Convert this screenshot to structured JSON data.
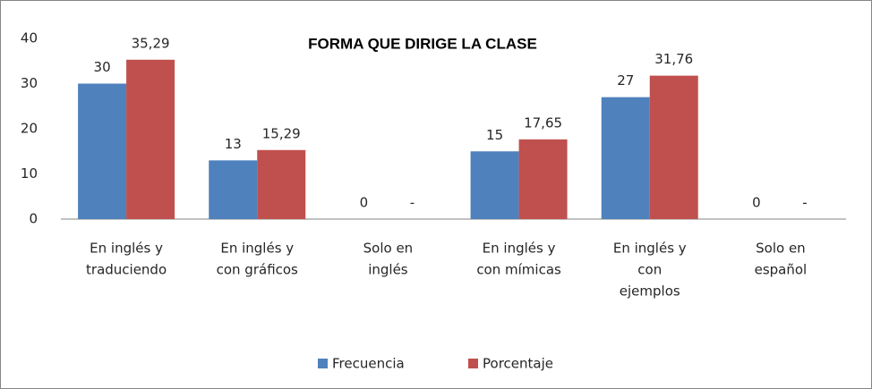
{
  "chart_data": {
    "type": "bar",
    "title": "FORMA QUE DIRIGE LA CLASE",
    "categories": [
      [
        "En inglés y",
        "traduciendo"
      ],
      [
        "En inglés y",
        "con gráficos"
      ],
      [
        "Solo en",
        "inglés"
      ],
      [
        "En inglés y",
        "con mímicas"
      ],
      [
        "En inglés y",
        "con",
        "ejemplos"
      ],
      [
        "Solo en",
        "español"
      ]
    ],
    "series": [
      {
        "name": "Frecuencia",
        "color": "#4f81bd",
        "values": [
          30,
          13,
          0,
          15,
          27,
          0
        ]
      },
      {
        "name": "Porcentaje",
        "color": "#c0504d",
        "values": [
          35.29,
          15.29,
          0,
          17.65,
          31.76,
          0
        ],
        "value_labels": [
          "35,29",
          "15,29",
          "-",
          "17,65",
          "31,76",
          "-"
        ]
      }
    ],
    "ylim": [
      0,
      40
    ],
    "yticks": [
      0,
      10,
      20,
      30,
      40
    ],
    "grid": false,
    "legend": "bottom"
  }
}
